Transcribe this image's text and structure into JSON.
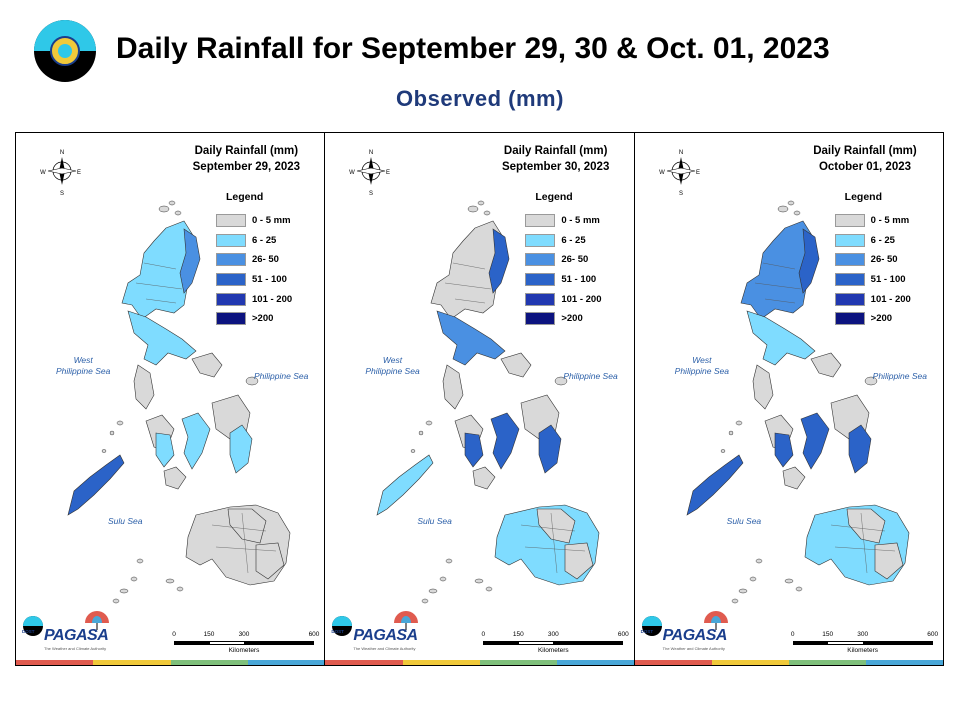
{
  "header": {
    "title": "Daily Rainfall for September 29, 30 & Oct. 01, 2023",
    "subtitle": "Observed (mm)"
  },
  "legend": {
    "heading": "Legend",
    "items": [
      {
        "label": "0 - 5 mm",
        "color": "#d9d9d9"
      },
      {
        "label": "6 - 25",
        "color": "#7fdcff"
      },
      {
        "label": "26- 50",
        "color": "#4a90e2"
      },
      {
        "label": "51 - 100",
        "color": "#2b63c8"
      },
      {
        "label": "101 - 200",
        "color": "#2138b0"
      },
      {
        "label": ">200",
        "color": "#0c137f"
      }
    ]
  },
  "map_labels": {
    "west_sea": "West\nPhilippine Sea",
    "east_sea": "Philippine Sea",
    "south_sea": "Sulu Sea",
    "compass_n": "N",
    "compass_s": "S",
    "compass_e": "E",
    "compass_w": "W"
  },
  "scale": {
    "ticks": [
      "0",
      "150",
      "300",
      "600"
    ],
    "units": "Kilometers"
  },
  "branding": {
    "agency": "PAGASA",
    "dost": "DOST",
    "tagline": "The Weather and Climate Authority"
  },
  "strip_colors": [
    "#e05b4f",
    "#f0c93a",
    "#7fc07b",
    "#49a7d8"
  ],
  "maps": [
    {
      "title_line1": "Daily Rainfall (mm)",
      "title_line2": "September 29, 2023",
      "palette": {
        "north": "#7fdcff",
        "ne": "#4a90e2",
        "vis": "#7fdcff",
        "minda": "#d9d9d9",
        "pal": "#2b63c8",
        "mid": "#7fdcff"
      }
    },
    {
      "title_line1": "Daily Rainfall (mm)",
      "title_line2": "September 30, 2023",
      "palette": {
        "north": "#d9d9d9",
        "ne": "#2b63c8",
        "vis": "#2b63c8",
        "minda": "#7fdcff",
        "pal": "#7fdcff",
        "mid": "#4a90e2"
      }
    },
    {
      "title_line1": "Daily Rainfall (mm)",
      "title_line2": "October 01, 2023",
      "palette": {
        "north": "#4a90e2",
        "ne": "#2b63c8",
        "vis": "#2b63c8",
        "minda": "#7fdcff",
        "pal": "#2b63c8",
        "mid": "#7fdcff"
      }
    }
  ]
}
